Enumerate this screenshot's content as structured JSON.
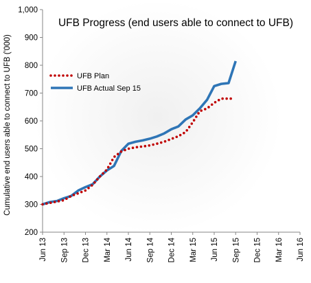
{
  "chart_data": {
    "type": "line",
    "title": "UFB Progress (end users able to connect to UFB)",
    "ylabel": "Cumulative end users able to connect to UFB ('000)",
    "xlabel": "",
    "ylim": [
      200,
      1000
    ],
    "yticks": [
      "200",
      "300",
      "400",
      "500",
      "600",
      "700",
      "800",
      "900",
      "1,000"
    ],
    "ytick_values": [
      200,
      300,
      400,
      500,
      600,
      700,
      800,
      900,
      1000
    ],
    "xticks": [
      "Jun 13",
      "Sep 13",
      "Dec 13",
      "Mar 14",
      "Jun 14",
      "Sep 14",
      "Dec 14",
      "Mar 15",
      "Jun 15",
      "Sep 15",
      "Dec 15",
      "Mar 16",
      "Jun 16"
    ],
    "grid": false,
    "legend_position": "left",
    "series": [
      {
        "name": "UFB Plan",
        "color": "#c00000",
        "style": "dotted",
        "x": [
          0,
          0.33,
          0.67,
          1,
          1.33,
          1.67,
          2,
          2.33,
          2.67,
          3,
          3.33,
          3.67,
          4,
          4.33,
          4.67,
          5,
          5.33,
          5.67,
          6,
          6.33,
          6.67,
          7,
          7.33,
          7.67,
          8,
          8.33,
          8.67,
          8.8
        ],
        "values": [
          300,
          305,
          310,
          315,
          330,
          340,
          350,
          370,
          400,
          425,
          470,
          490,
          500,
          505,
          508,
          512,
          518,
          525,
          535,
          545,
          560,
          595,
          635,
          645,
          665,
          680,
          680,
          680
        ]
      },
      {
        "name": "UFB Actual Sep 15",
        "color": "#2e75b6",
        "style": "solid",
        "x": [
          0,
          0.33,
          0.67,
          1,
          1.33,
          1.67,
          2,
          2.33,
          2.67,
          3,
          3.33,
          3.67,
          4,
          4.33,
          4.67,
          5,
          5.33,
          5.67,
          6,
          6.33,
          6.67,
          7,
          7.33,
          7.67,
          8,
          8.33,
          8.67,
          9
        ],
        "values": [
          300,
          308,
          312,
          322,
          330,
          350,
          362,
          372,
          400,
          422,
          438,
          492,
          518,
          525,
          530,
          536,
          544,
          555,
          570,
          580,
          605,
          620,
          645,
          676,
          725,
          733,
          736,
          815
        ]
      }
    ]
  }
}
